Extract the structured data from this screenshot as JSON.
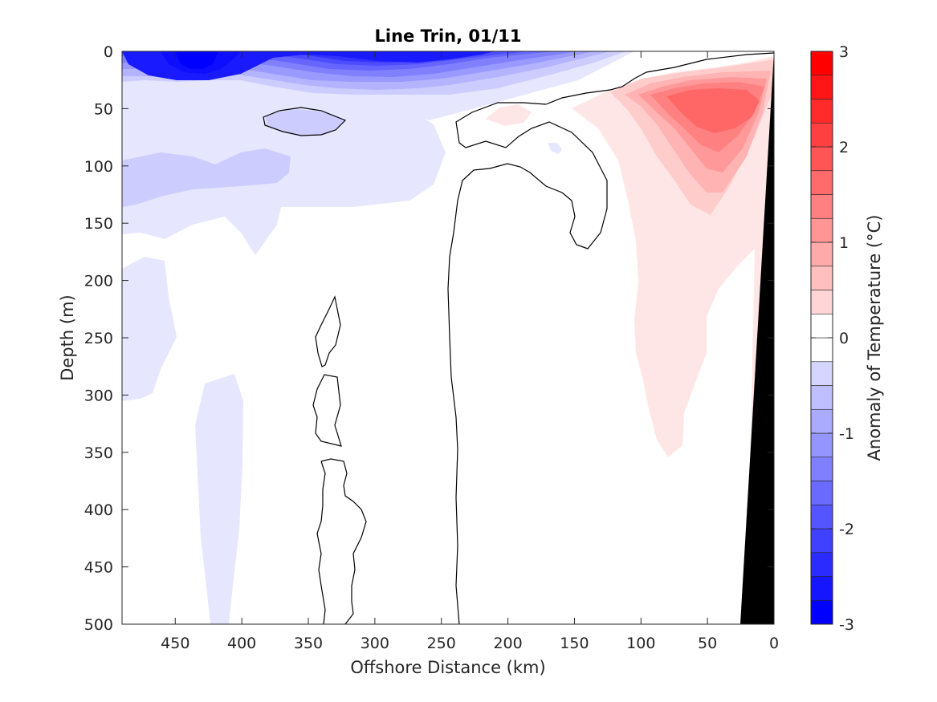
{
  "chart_data": {
    "type": "contour",
    "title": "Line Trin, 01/11",
    "xlabel": "Offshore Distance (km)",
    "ylabel": "Depth (m)",
    "xlim": [
      490,
      0
    ],
    "ylim": [
      0,
      500
    ],
    "x_reversed": true,
    "y_reversed": true,
    "x_ticks": [
      450,
      400,
      350,
      300,
      250,
      200,
      150,
      100,
      50,
      0
    ],
    "y_ticks": [
      0,
      50,
      100,
      150,
      200,
      250,
      300,
      350,
      400,
      450,
      500
    ],
    "colorbar": {
      "label": "Anomaly of Temperature (°C)",
      "range": [
        -3,
        3
      ],
      "ticks": [
        -3,
        -2,
        -1,
        0,
        1,
        2,
        3
      ],
      "tick_labels": [
        "-3",
        "-2",
        "-1",
        "0",
        "1",
        "2",
        "3"
      ],
      "levels": [
        -3,
        -2.75,
        -2.5,
        -2.25,
        -2,
        -1.75,
        -1.5,
        -1.25,
        -1,
        -0.75,
        -0.5,
        -0.25,
        0,
        0.25,
        0.5,
        0.75,
        1,
        1.25,
        1.5,
        1.75,
        2,
        2.25,
        2.5,
        2.75,
        3
      ],
      "negative_color": "#0000ff",
      "positive_color": "#ff0000"
    },
    "regions": [
      {
        "name": "near-surface cold core",
        "x_range": [
          490,
          150
        ],
        "depth_range": [
          0,
          60
        ],
        "anomaly_min": -2.5
      },
      {
        "name": "subsurface cold layer",
        "x_range": [
          490,
          270
        ],
        "depth_range": [
          80,
          160
        ],
        "anomaly_min": -1
      },
      {
        "name": "shallow cold eddy",
        "x_range": [
          385,
          315
        ],
        "depth_range": [
          50,
          75
        ],
        "anomaly_min": -1
      },
      {
        "name": "offshore deep cold tongue",
        "x_range": [
          490,
          415
        ],
        "depth_range": [
          160,
          300
        ],
        "anomaly_min": -0.5
      },
      {
        "name": "deep cold column",
        "x_range": [
          440,
          390
        ],
        "depth_range": [
          280,
          500
        ],
        "anomaly_min": -0.5
      },
      {
        "name": "coastal warm core",
        "x_range": [
          125,
          0
        ],
        "depth_range": [
          15,
          360
        ],
        "anomaly_max": 1.5
      }
    ],
    "zero_contours": 5,
    "bathymetry": {
      "color": "#000000",
      "x_at_bottom": 27,
      "x_at_surface": 0
    }
  }
}
